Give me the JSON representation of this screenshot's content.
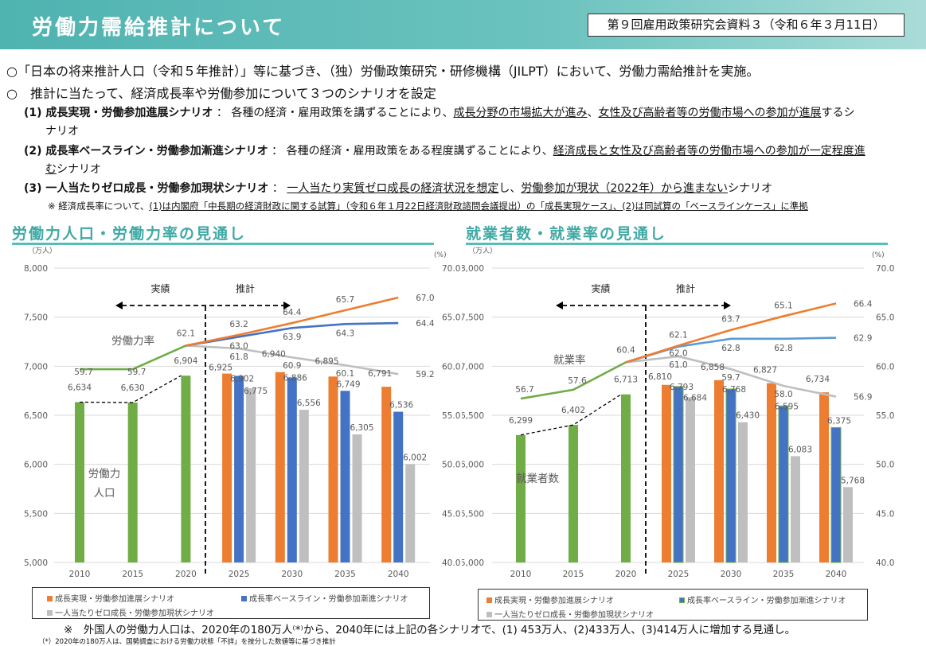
{
  "header": {
    "title": "労働力需給推計について",
    "source": "第９回雇用政策研究会資料３（令和６年３月11日）"
  },
  "intro": {
    "bullet1": "○「日本の将来推計人口（令和５年推計）」等に基づき、（独）労働政策研究・研修機構（JILPT）において、労働力需給推計を実施。",
    "bullet2": "○　推計に当たって、経済成長率や労働参加について３つのシナリオを設定",
    "s1": {
      "name": "(1)  成長実現・労働参加進展シナリオ",
      "pre": " ： 各種の経済・雇用政策を講ずることにより、",
      "u1": "成長分野の市場拡大が進み",
      "mid": "、",
      "u2": "女性及び高齢者等の労働市場への参加が進展",
      "post": "するシ",
      "wrap": "ナリオ"
    },
    "s2": {
      "name": "(2) 成長率ベースライン・労働参加漸進シナリオ",
      "pre": " ： 各種の経済・雇用政策をある程度講ずることにより、",
      "u1": "経済成長と女性及び高齢者等の労働市場への参加が一定程度進",
      "wrap_u": "む",
      "wrap": "シナリオ"
    },
    "s3": {
      "name": "(3) 一人当たりゼロ成長・労働参加現状シナリオ",
      "pre": " ： ",
      "u1": "一人当たり実質ゼロ成長の経済状況を想定",
      "mid": "し、",
      "u2": "労働参加が現状（2022年）から進まない",
      "post": "シナリオ"
    },
    "note_pre": "※ 経済成長率について、",
    "note_u": "(1)は内閣府「中長期の経済財政に関する試算」（令和６年１月22日経済財政諮問会議提出）の「成長実現ケース」、(2)は同試算の「ベースラインケース」に準拠"
  },
  "colors": {
    "actual": "#70ad47",
    "growth": "#ed7d31",
    "baseline": "#4472c4",
    "baseline_line_right": "#5b9bd5",
    "zero": "#bfbfbf",
    "accent": "#3fa9a4"
  },
  "chart_data": [
    {
      "type": "bar+line",
      "title": "労働力人口・労働力率の見通し",
      "ylabel_left": "（万人）",
      "ylabel_right": "(%)",
      "ylim_left": [
        5000,
        8000
      ],
      "ylim_right": [
        40,
        70
      ],
      "yticks_left": [
        "5,000",
        "5,500",
        "6,000",
        "6,500",
        "7,000",
        "7,500",
        "8,000"
      ],
      "yticks_right": [
        "40.0",
        "45.0",
        "50.0",
        "55.0",
        "60.0",
        "65.0",
        "70.0"
      ],
      "categories": [
        "2010",
        "2015",
        "2020",
        "2025",
        "2030",
        "2035",
        "2040"
      ],
      "actual_label": "実績",
      "projection_label": "推計",
      "rate_label": "労働力率",
      "bar_label": [
        "労働力",
        "人口"
      ],
      "actual_bars": [
        6634,
        6630,
        6904
      ],
      "actual_bar_labels": [
        "6,634",
        "6,630",
        "6,904"
      ],
      "series": [
        {
          "name": "成長実現・労働参加進展シナリオ",
          "bars": [
            6925,
            6940,
            6895,
            6791
          ],
          "bar_labels": [
            "6,925",
            "6,940",
            "6,895",
            "6,791"
          ],
          "rates": [
            62.1,
            63.2,
            64.4,
            65.7,
            67.0
          ],
          "rate_labels": [
            "63.2",
            "64.4",
            "65.7",
            "67.0"
          ]
        },
        {
          "name": "成長率ベースライン・労働参加漸進シナリオ",
          "bars": [
            6902,
            6886,
            6749,
            6536
          ],
          "bar_labels": [
            "6,902",
            "6,886",
            "6,749",
            "6,536"
          ],
          "rates": [
            62.1,
            63.0,
            63.9,
            64.3,
            64.4
          ],
          "rate_labels": [
            "63.0",
            "63.9",
            "64.3",
            "64.4"
          ]
        },
        {
          "name": "一人当たりゼロ成長・労働参加現状シナリオ",
          "bars": [
            6775,
            6556,
            6305,
            6002
          ],
          "bar_labels": [
            "6,775",
            "6,556",
            "6,305",
            "6,002"
          ],
          "rates": [
            62.1,
            61.8,
            60.9,
            60.1,
            59.2
          ],
          "rate_labels": [
            "61.8",
            "60.9",
            "60.1",
            "59.2"
          ]
        }
      ],
      "actual_rates": [
        59.7,
        59.7,
        62.1
      ],
      "actual_rate_labels": [
        "59.7",
        "59.7",
        "62.1"
      ],
      "legend": "bottom"
    },
    {
      "type": "bar+line",
      "title": "就業者数・就業率の見通し",
      "ylabel_left": "（万人）",
      "ylabel_right": "(%)",
      "ylim_left": [
        5000,
        8000
      ],
      "ylim_right": [
        40,
        70
      ],
      "yticks_left": [
        "5,000",
        "5,500",
        "6,000",
        "6,500",
        "7,000",
        "7,500",
        "8,000"
      ],
      "yticks_right": [
        "40.0",
        "45.0",
        "50.0",
        "55.0",
        "60.0",
        "65.0",
        "70.0"
      ],
      "categories": [
        "2010",
        "2015",
        "2020",
        "2025",
        "2030",
        "2035",
        "2040"
      ],
      "actual_label": "実績",
      "projection_label": "推計",
      "rate_label": "就業率",
      "bar_label": [
        "就業者数"
      ],
      "actual_bars": [
        6299,
        6402,
        6713
      ],
      "actual_bar_labels": [
        "6,299",
        "6,402",
        "6,713"
      ],
      "series": [
        {
          "name": "成長実現・労働参加進展シナリオ",
          "bars": [
            6810,
            6858,
            6827,
            6734
          ],
          "bar_labels": [
            "6,810",
            "6,858",
            "6,827",
            "6,734"
          ],
          "rates": [
            60.4,
            62.1,
            63.7,
            65.1,
            66.4
          ],
          "rate_labels": [
            "62.1",
            "63.7",
            "65.1",
            "66.4"
          ]
        },
        {
          "name": "成長率ベースライン・労働参加漸進シナリオ",
          "bars": [
            6793,
            6768,
            6595,
            6375
          ],
          "bar_labels": [
            "6,793",
            "6,768",
            "6,595",
            "6,375"
          ],
          "rates": [
            60.4,
            62.0,
            62.8,
            62.8,
            62.9
          ],
          "rate_labels": [
            "62.0",
            "62.8",
            "62.8",
            "62.9"
          ]
        },
        {
          "name": "一人当たりゼロ成長・労働参加現状シナリオ",
          "bars": [
            6684,
            6430,
            6083,
            5768
          ],
          "bar_labels": [
            "6,684",
            "6,430",
            "6,083",
            "5,768"
          ],
          "rates": [
            60.4,
            61.0,
            59.7,
            58.0,
            56.9
          ],
          "rate_labels": [
            "61.0",
            "59.7",
            "58.0",
            "56.9"
          ]
        }
      ],
      "actual_rates": [
        56.7,
        57.6,
        60.4
      ],
      "actual_rate_labels": [
        "56.7",
        "57.6",
        "60.4"
      ],
      "legend": "bottom"
    }
  ],
  "legend": {
    "s1": "成長実現・労働参加進展シナリオ",
    "s2": "成長率ベースライン・労働参加漸進シナリオ",
    "s3": "一人当たりゼロ成長・労働参加現状シナリオ"
  },
  "footer": {
    "note": "※　外国人の労働力人口は、2020年の180万人⁽*⁾から、2040年には上記の各シナリオで、(1) 453万人、(2)433万人、(3)414万人に増加する見通し。",
    "subnote": "（*）2020年の180万人は、国勢調査における労働力状態「不詳」を按分した数値等に基づき推計"
  }
}
